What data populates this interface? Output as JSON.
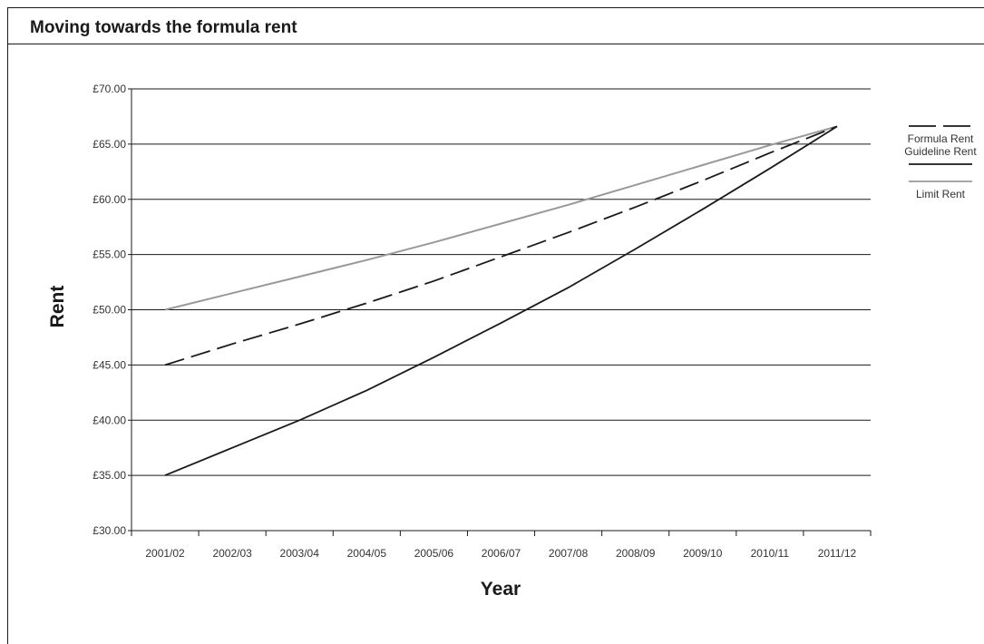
{
  "header": {
    "title": "Moving towards the formula rent"
  },
  "chart_data": {
    "type": "line",
    "title": "Moving towards the formula rent",
    "xlabel": "Year",
    "ylabel": "Rent",
    "categories": [
      "2001/02",
      "2002/03",
      "2003/04",
      "2004/05",
      "2005/06",
      "2006/07",
      "2007/08",
      "2008/09",
      "2009/10",
      "2010/11",
      "2011/12"
    ],
    "ylim": [
      30,
      70
    ],
    "yticks": [
      "£30.00",
      "£35.00",
      "£40.00",
      "£45.00",
      "£50.00",
      "£55.00",
      "£60.00",
      "£65.00",
      "£70.00"
    ],
    "ytick_values": [
      30,
      35,
      40,
      45,
      50,
      55,
      60,
      65,
      70
    ],
    "grid": true,
    "legend_position": "right",
    "series": [
      {
        "name": "Formula Rent",
        "style": "dashed",
        "color": "#1a1a1a",
        "values": [
          45.0,
          46.9,
          48.7,
          50.6,
          52.6,
          54.8,
          57.0,
          59.3,
          61.7,
          64.2,
          66.6
        ]
      },
      {
        "name": "Guideline Rent",
        "style": "solid",
        "color": "#1a1a1a",
        "values": [
          35.0,
          37.5,
          40.0,
          42.7,
          45.7,
          48.8,
          52.0,
          55.5,
          59.1,
          62.8,
          66.6
        ]
      },
      {
        "name": "Limit Rent",
        "style": "solid",
        "color": "#999999",
        "values": [
          50.0,
          51.5,
          53.0,
          54.5,
          56.1,
          57.8,
          59.5,
          61.3,
          63.1,
          64.9,
          66.6
        ]
      }
    ]
  }
}
